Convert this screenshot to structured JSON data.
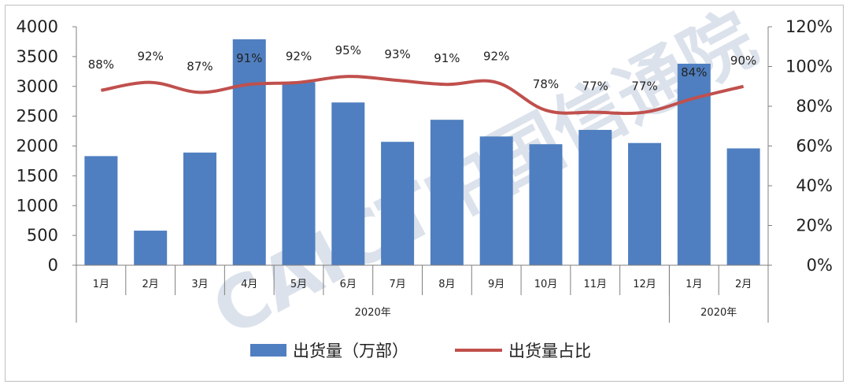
{
  "chart_data": {
    "type": "bar",
    "categories": [
      "1月",
      "2月",
      "3月",
      "4月",
      "5月",
      "6月",
      "7月",
      "8月",
      "9月",
      "10月",
      "11月",
      "12月",
      "1月",
      "2月"
    ],
    "groups": [
      {
        "label": "2020年",
        "count": 12
      },
      {
        "label": "2020年",
        "count": 2
      }
    ],
    "series": [
      {
        "name": "出货量（万部）",
        "type": "bar",
        "axis": "left",
        "color": "#4f7fc0",
        "values": [
          1830,
          580,
          1890,
          3790,
          3070,
          2730,
          2070,
          2440,
          2160,
          2030,
          2270,
          2050,
          3380,
          1960
        ]
      },
      {
        "name": "出货量占比",
        "type": "line",
        "axis": "right",
        "color": "#c0504d",
        "values": [
          88,
          92,
          87,
          91,
          92,
          95,
          93,
          91,
          92,
          78,
          77,
          77,
          84,
          90
        ],
        "labels": [
          "88%",
          "92%",
          "87%",
          "91%",
          "92%",
          "95%",
          "93%",
          "91%",
          "92%",
          "78%",
          "77%",
          "77%",
          "84%",
          "90%"
        ]
      }
    ],
    "y_left": {
      "min": 0,
      "max": 4000,
      "ticks": [
        "0",
        "500",
        "1000",
        "1500",
        "2000",
        "2500",
        "3000",
        "3500",
        "4000"
      ]
    },
    "y_right": {
      "min": 0,
      "max": 120,
      "ticks": [
        "0%",
        "20%",
        "40%",
        "60%",
        "80%",
        "100%",
        "120%"
      ]
    },
    "grid": false,
    "legend_position": "bottom",
    "watermark": "CAICT中国信通院"
  }
}
